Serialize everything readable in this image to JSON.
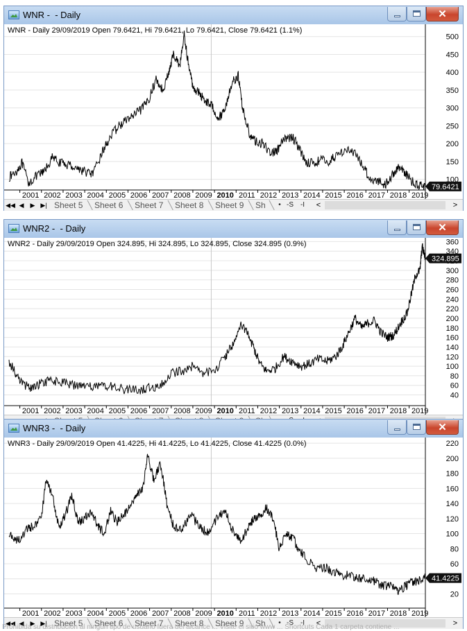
{
  "colors": {
    "line": "#000000",
    "grid": "#e4e4e4",
    "divider": "#c8c8c8",
    "tag_bg": "#111111",
    "tag_text": "#ffffff",
    "title_bar": "#b9d1ea",
    "close_red": "#c9452d"
  },
  "tabs": [
    "Sheet 5",
    "Sheet 6",
    "Sheet 7",
    "Sheet 8",
    "Sheet 9",
    "Sh"
  ],
  "sheet_buttons": {
    "dot": "•",
    "s": "-S",
    "i": "-I",
    "first": "◀◀",
    "prev": "◀",
    "next": "▶",
    "last": "▶|",
    "scroll_left": "<",
    "scroll_right": ">"
  },
  "window_buttons": {
    "close": "✕"
  },
  "footer_text": "Prohibida su distribución al ningún tipo de usuario fuera del alcance ... Visite el sitio www ... Shortcuts Cada 1 carpeta contiene ...",
  "windows": [
    {
      "title": "WNR -  - Daily",
      "info": "WNR - Daily 29/09/2019 Open 79.6421, Hi 79.6421, Lo 79.6421, Close 79.6421 (1.1%)",
      "last_label": "79.6421",
      "x_ticks": [
        "2001",
        "2002",
        "2003",
        "2004",
        "2005",
        "2006",
        "2007",
        "2008",
        "2009",
        "2010",
        "2011",
        "2012",
        "2013",
        "2014",
        "2015",
        "2016",
        "2017",
        "2018",
        "2019"
      ],
      "bold_tick": "2010",
      "y_ticks": [
        "500",
        "450",
        "400",
        "350",
        "300",
        "250",
        "200",
        "150",
        "100"
      ],
      "chart_data": {
        "type": "line",
        "x_range": [
          2000.5,
          2019.75
        ],
        "ylim": [
          72,
          515
        ],
        "series": [
          {
            "x": [
              2000.5,
              2000.8,
              2001.1,
              2001.4,
              2001.8,
              2002.1,
              2002.5,
              2002.9,
              2003.3,
              2003.7,
              2004.1,
              2004.4,
              2004.8,
              2005.1,
              2005.5,
              2005.9,
              2006.3,
              2006.7,
              2007.0,
              2007.3,
              2007.6,
              2007.9,
              2008.1,
              2008.4,
              2008.6,
              2008.8,
              2009.0,
              2009.3,
              2009.6,
              2009.9,
              2010.2,
              2010.5,
              2010.8,
              2011.1,
              2011.3,
              2011.6,
              2011.9,
              2012.2,
              2012.6,
              2012.9,
              2013.2,
              2013.6,
              2013.9,
              2014.2,
              2014.6,
              2014.9,
              2015.3,
              2015.7,
              2016.1,
              2016.5,
              2016.9,
              2017.2,
              2017.6,
              2017.9,
              2018.2,
              2018.5,
              2018.8,
              2019.1,
              2019.4,
              2019.75
            ],
            "y": [
              105,
              120,
              145,
              90,
              110,
              120,
              160,
              145,
              140,
              130,
              120,
              115,
              175,
              210,
              245,
              265,
              280,
              300,
              330,
              380,
              350,
              400,
              450,
              420,
              505,
              420,
              360,
              340,
              320,
              305,
              270,
              300,
              370,
              390,
              300,
              230,
              205,
              200,
              175,
              180,
              210,
              220,
              190,
              150,
              145,
              155,
              150,
              170,
              185,
              170,
              135,
              100,
              95,
              85,
              110,
              135,
              120,
              95,
              85,
              80
            ]
          }
        ]
      }
    },
    {
      "title": "WNR2 -  - Daily",
      "info": "WNR2 - Daily 29/09/2019 Open 324.895, Hi 324.895, Lo 324.895, Close 324.895 (0.9%)",
      "last_label": "324.895",
      "x_ticks": [
        "2001",
        "2002",
        "2003",
        "2004",
        "2005",
        "2006",
        "2007",
        "2008",
        "2009",
        "2010",
        "2011",
        "2012",
        "2013",
        "2014",
        "2015",
        "2016",
        "2017",
        "2018",
        "2019"
      ],
      "bold_tick": "2010",
      "y_ticks": [
        "360",
        "340",
        "320",
        "300",
        "280",
        "260",
        "240",
        "220",
        "200",
        "180",
        "160",
        "140",
        "120",
        "100",
        "80",
        "60",
        "40"
      ],
      "chart_data": {
        "type": "line",
        "x_range": [
          2000.5,
          2019.75
        ],
        "ylim": [
          35,
          362
        ],
        "series": [
          {
            "x": [
              2000.5,
              2000.8,
              2001.2,
              2001.6,
              2002.0,
              2002.5,
              2003.0,
              2003.5,
              2004.0,
              2004.5,
              2005.0,
              2005.5,
              2006.0,
              2006.5,
              2007.0,
              2007.5,
              2008.0,
              2008.5,
              2009.0,
              2009.5,
              2010.0,
              2010.5,
              2010.9,
              2011.2,
              2011.5,
              2011.8,
              2012.1,
              2012.4,
              2012.8,
              2013.2,
              2013.6,
              2014.0,
              2014.4,
              2014.8,
              2015.2,
              2015.6,
              2015.9,
              2016.2,
              2016.5,
              2016.8,
              2017.1,
              2017.4,
              2017.7,
              2018.0,
              2018.3,
              2018.6,
              2018.9,
              2019.1,
              2019.3,
              2019.5,
              2019.6,
              2019.75
            ],
            "y": [
              110,
              85,
              60,
              55,
              65,
              70,
              65,
              60,
              60,
              55,
              60,
              55,
              50,
              50,
              55,
              60,
              85,
              90,
              100,
              85,
              90,
              120,
              150,
              185,
              175,
              140,
              105,
              90,
              95,
              120,
              110,
              100,
              105,
              115,
              110,
              120,
              140,
              170,
              200,
              180,
              190,
              195,
              170,
              160,
              165,
              190,
              210,
              250,
              290,
              300,
              350,
              325
            ]
          }
        ]
      }
    },
    {
      "title": "WNR3 -  - Daily",
      "info": "WNR3 - Daily 29/09/2019 Open 41.4225, Hi 41.4225, Lo 41.4225, Close 41.4225 (0.0%)",
      "last_label": "41.4225",
      "x_ticks": [
        "2001",
        "2002",
        "2003",
        "2004",
        "2005",
        "2006",
        "2007",
        "2008",
        "2009",
        "2010",
        "2011",
        "2012",
        "2013",
        "2014",
        "2015",
        "2016",
        "2017",
        "2018",
        "2019"
      ],
      "bold_tick": "2010",
      "y_ticks": [
        "220",
        "200",
        "180",
        "160",
        "140",
        "120",
        "100",
        "80",
        "60",
        "40",
        "20"
      ],
      "chart_data": {
        "type": "line",
        "x_range": [
          2000.5,
          2019.75
        ],
        "ylim": [
          14,
          222
        ],
        "series": [
          {
            "x": [
              2000.5,
              2000.9,
              2001.3,
              2001.6,
              2002.0,
              2002.2,
              2002.5,
              2002.8,
              2003.1,
              2003.4,
              2003.7,
              2004.0,
              2004.3,
              2004.6,
              2004.9,
              2005.2,
              2005.5,
              2005.8,
              2006.1,
              2006.4,
              2006.7,
              2006.9,
              2007.2,
              2007.5,
              2007.8,
              2008.1,
              2008.5,
              2008.9,
              2009.3,
              2009.7,
              2010.1,
              2010.5,
              2010.9,
              2011.2,
              2011.5,
              2011.8,
              2012.1,
              2012.4,
              2012.7,
              2013.0,
              2013.3,
              2013.6,
              2013.9,
              2014.3,
              2014.7,
              2015.1,
              2015.5,
              2015.9,
              2016.3,
              2016.7,
              2017.1,
              2017.5,
              2017.9,
              2018.2,
              2018.5,
              2018.8,
              2019.1,
              2019.4,
              2019.75
            ],
            "y": [
              100,
              90,
              105,
              110,
              120,
              170,
              150,
              110,
              125,
              150,
              115,
              120,
              130,
              110,
              100,
              130,
              115,
              125,
              135,
              150,
              160,
              205,
              170,
              195,
              140,
              110,
              105,
              125,
              110,
              100,
              120,
              130,
              100,
              90,
              105,
              120,
              125,
              135,
              120,
              80,
              100,
              95,
              80,
              65,
              55,
              55,
              50,
              45,
              45,
              40,
              40,
              35,
              30,
              30,
              25,
              30,
              35,
              38,
              41
            ]
          }
        ]
      }
    }
  ]
}
